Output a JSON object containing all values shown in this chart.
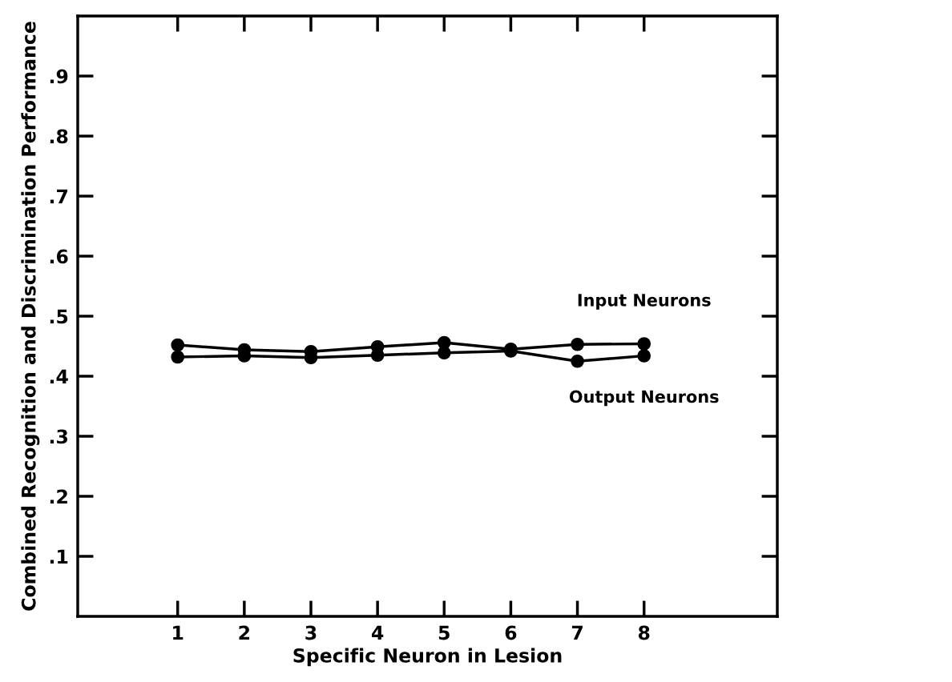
{
  "chart_data": {
    "type": "line",
    "xlabel": "Specific Neuron in Lesion",
    "ylabel": "Combined Recognition and Discrimination Performance",
    "x": [
      1,
      2,
      3,
      4,
      5,
      6,
      7,
      8
    ],
    "series": [
      {
        "name": "Input Neurons",
        "color": "#000000",
        "values": [
          0.452,
          0.444,
          0.441,
          0.449,
          0.456,
          0.445,
          0.453,
          0.454
        ]
      },
      {
        "name": "Output Neurons",
        "color": "#000000",
        "values": [
          0.432,
          0.434,
          0.431,
          0.435,
          0.439,
          0.442,
          0.425,
          0.434
        ]
      }
    ],
    "xlim": [
      -0.5,
      10
    ],
    "xticks": [
      1,
      2,
      3,
      4,
      5,
      6,
      7,
      8
    ],
    "ylim": [
      0,
      1.0
    ],
    "yticks": [
      {
        "value": 0.1,
        "label": ".1"
      },
      {
        "value": 0.2,
        "label": ".2"
      },
      {
        "value": 0.3,
        "label": ".3"
      },
      {
        "value": 0.4,
        "label": ".4"
      },
      {
        "value": 0.5,
        "label": ".5"
      },
      {
        "value": 0.6,
        "label": ".6"
      },
      {
        "value": 0.7,
        "label": ".7"
      },
      {
        "value": 0.8,
        "label": ".8"
      },
      {
        "value": 0.9,
        "label": ".9"
      }
    ],
    "marker": "circle",
    "line_style": "solid",
    "grid": false,
    "legend": false
  }
}
